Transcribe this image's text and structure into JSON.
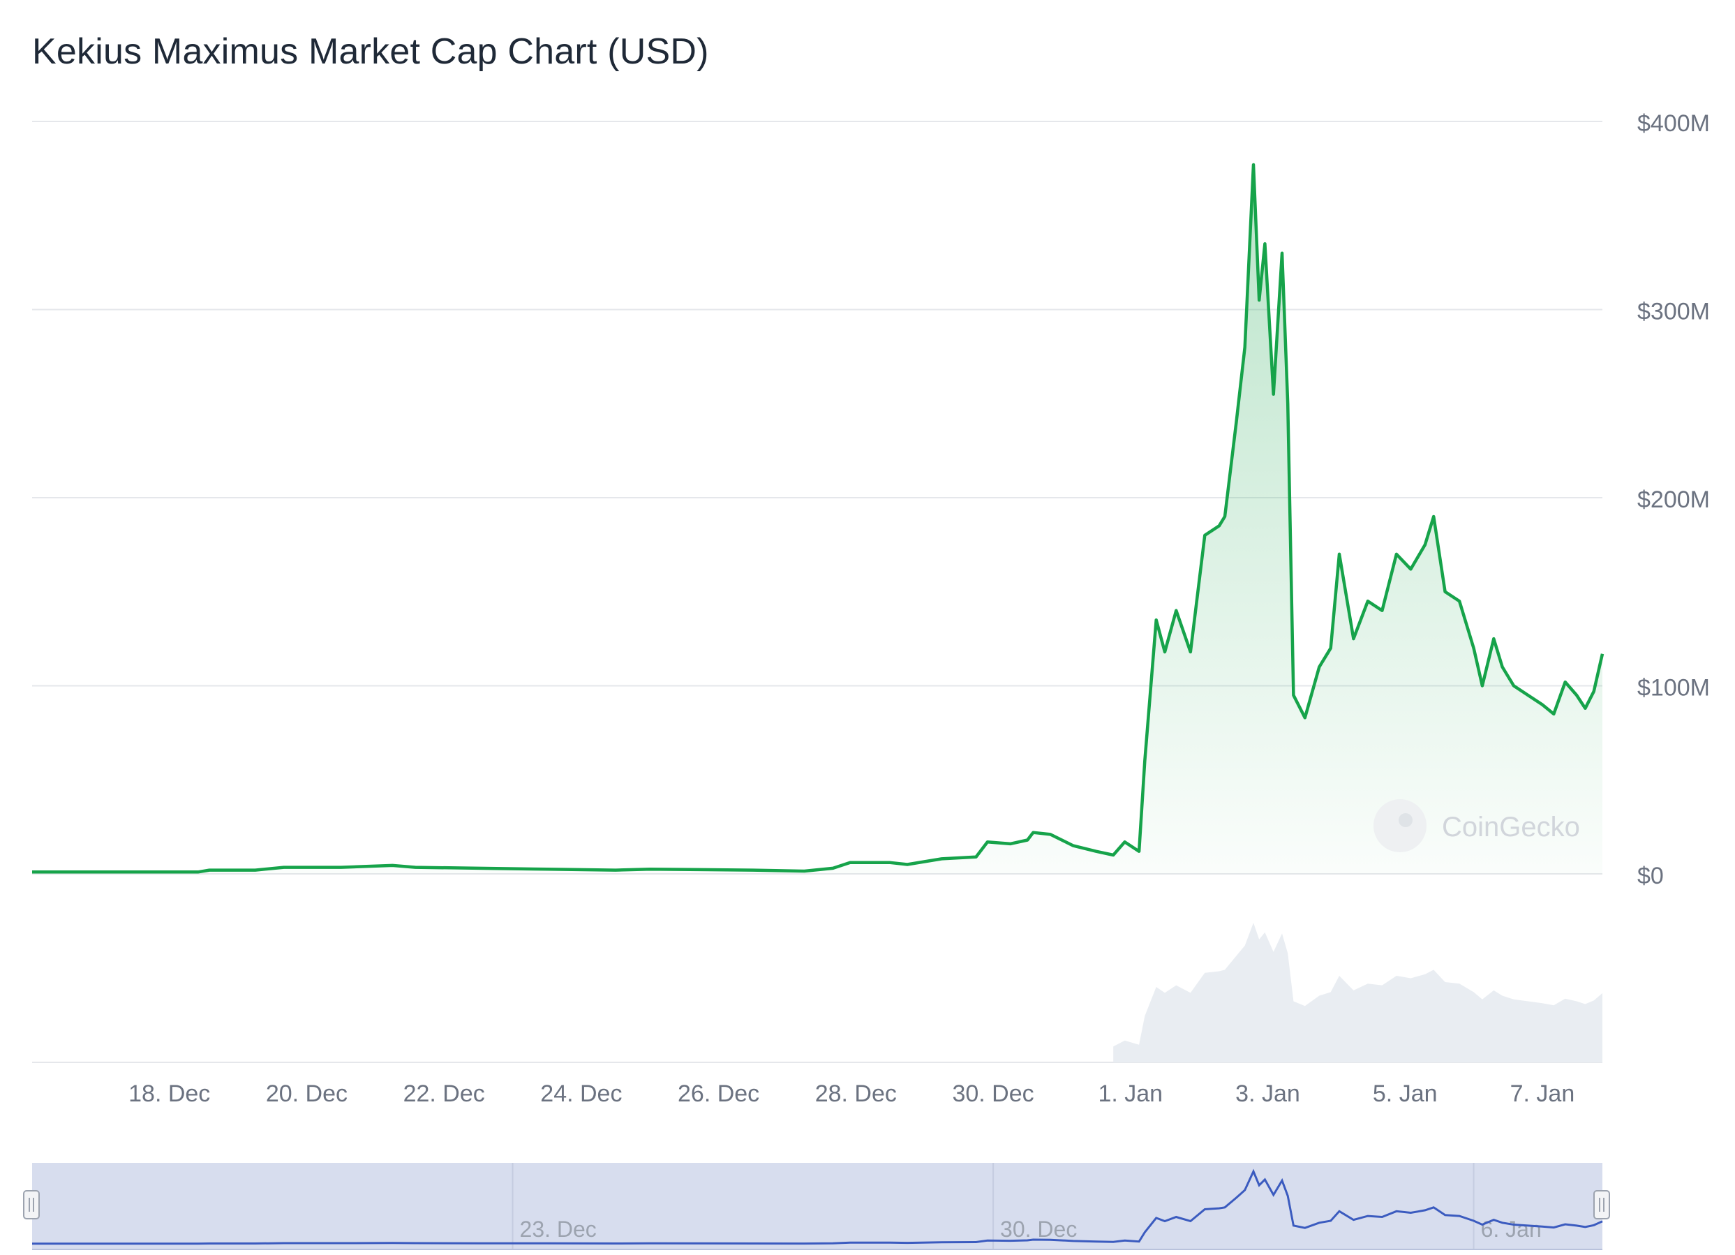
{
  "title": "Kekius Maximus Market Cap Chart (USD)",
  "watermark": "CoinGecko",
  "colors": {
    "line": "#16a34a",
    "area_top": "#16a34a",
    "grid": "#e5e7eb",
    "axis_text": "#6b7280",
    "volume": "#e9edf2",
    "navigator_bg": "#d7ddee",
    "navigator_line": "#3b5bbf"
  },
  "chart_data": {
    "type": "area",
    "title": "Kekius Maximus Market Cap Chart (USD)",
    "xlabel": "",
    "ylabel": "",
    "yunit": "USD millions",
    "ylim": [
      0,
      400
    ],
    "yticks": [
      0,
      100,
      200,
      300,
      400
    ],
    "ytick_labels": [
      "$0",
      "$100M",
      "$200M",
      "$300M",
      "$400M"
    ],
    "xlim": [
      "2024-12-16",
      "2025-01-07T21:00"
    ],
    "xtick_labels": [
      "18. Dec",
      "20. Dec",
      "22. Dec",
      "24. Dec",
      "26. Dec",
      "28. Dec",
      "30. Dec",
      "1. Jan",
      "3. Jan",
      "5. Jan",
      "7. Jan"
    ],
    "xtick_dates": [
      "2024-12-18",
      "2024-12-20",
      "2024-12-22",
      "2024-12-24",
      "2024-12-26",
      "2024-12-28",
      "2024-12-30",
      "2025-01-01",
      "2025-01-03",
      "2025-01-05",
      "2025-01-07"
    ],
    "grid": true,
    "series": [
      {
        "values": [
          [
            "2024-12-16T00:00",
            1
          ],
          [
            "2024-12-18T10:00",
            1
          ],
          [
            "2024-12-18T14:00",
            2
          ],
          [
            "2024-12-19T06:00",
            2
          ],
          [
            "2024-12-19T16:00",
            3.5
          ],
          [
            "2024-12-20T12:00",
            3.5
          ],
          [
            "2024-12-21T06:00",
            4.5
          ],
          [
            "2024-12-21T14:00",
            3.5
          ],
          [
            "2024-12-22T12:00",
            3
          ],
          [
            "2024-12-23T12:00",
            2.5
          ],
          [
            "2024-12-24T12:00",
            2
          ],
          [
            "2024-12-25T00:00",
            2.5
          ],
          [
            "2024-12-26T12:00",
            2
          ],
          [
            "2024-12-27T06:00",
            1.5
          ],
          [
            "2024-12-27T16:00",
            3
          ],
          [
            "2024-12-27T22:00",
            6
          ],
          [
            "2024-12-28T12:00",
            6
          ],
          [
            "2024-12-28T18:00",
            5
          ],
          [
            "2024-12-29T06:00",
            8
          ],
          [
            "2024-12-29T18:00",
            9
          ],
          [
            "2024-12-29T22:00",
            17
          ],
          [
            "2024-12-30T06:00",
            16
          ],
          [
            "2024-12-30T12:00",
            18
          ],
          [
            "2024-12-30T14:00",
            22
          ],
          [
            "2024-12-30T20:00",
            21
          ],
          [
            "2024-12-31T04:00",
            15
          ],
          [
            "2024-12-31T12:00",
            12
          ],
          [
            "2024-12-31T18:00",
            10
          ],
          [
            "2024-12-31T22:00",
            17
          ],
          [
            "2025-01-01T03:00",
            12
          ],
          [
            "2025-01-01T05:00",
            60
          ],
          [
            "2025-01-01T09:00",
            135
          ],
          [
            "2025-01-01T12:00",
            118
          ],
          [
            "2025-01-01T16:00",
            140
          ],
          [
            "2025-01-01T21:00",
            118
          ],
          [
            "2025-01-02T02:00",
            180
          ],
          [
            "2025-01-02T07:00",
            185
          ],
          [
            "2025-01-02T09:00",
            190
          ],
          [
            "2025-01-02T13:00",
            240
          ],
          [
            "2025-01-02T16:00",
            280
          ],
          [
            "2025-01-02T19:00",
            377
          ],
          [
            "2025-01-02T21:00",
            305
          ],
          [
            "2025-01-02T23:00",
            335
          ],
          [
            "2025-01-03T02:00",
            255
          ],
          [
            "2025-01-03T05:00",
            330
          ],
          [
            "2025-01-03T07:00",
            250
          ],
          [
            "2025-01-03T09:00",
            95
          ],
          [
            "2025-01-03T13:00",
            83
          ],
          [
            "2025-01-03T18:00",
            110
          ],
          [
            "2025-01-03T22:00",
            120
          ],
          [
            "2025-01-04T01:00",
            170
          ],
          [
            "2025-01-04T06:00",
            125
          ],
          [
            "2025-01-04T11:00",
            145
          ],
          [
            "2025-01-04T16:00",
            140
          ],
          [
            "2025-01-04T21:00",
            170
          ],
          [
            "2025-01-05T02:00",
            162
          ],
          [
            "2025-01-05T07:00",
            175
          ],
          [
            "2025-01-05T10:00",
            190
          ],
          [
            "2025-01-05T14:00",
            150
          ],
          [
            "2025-01-05T19:00",
            145
          ],
          [
            "2025-01-06T00:00",
            120
          ],
          [
            "2025-01-06T03:00",
            100
          ],
          [
            "2025-01-06T07:00",
            125
          ],
          [
            "2025-01-06T10:00",
            110
          ],
          [
            "2025-01-06T14:00",
            100
          ],
          [
            "2025-01-06T19:00",
            95
          ],
          [
            "2025-01-07T00:00",
            90
          ],
          [
            "2025-01-07T04:00",
            85
          ],
          [
            "2025-01-07T08:00",
            102
          ],
          [
            "2025-01-07T12:00",
            95
          ],
          [
            "2025-01-07T15:00",
            88
          ],
          [
            "2025-01-07T18:00",
            97
          ],
          [
            "2025-01-07T21:00",
            117
          ]
        ]
      }
    ],
    "navigator": {
      "xtick_labels": [
        "23. Dec",
        "30. Dec",
        "6. Jan"
      ]
    }
  }
}
